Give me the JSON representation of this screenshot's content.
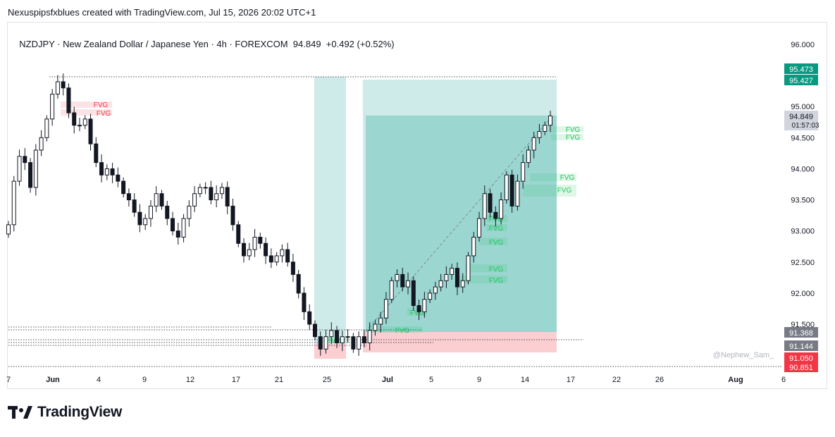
{
  "header": {
    "attribution": "Nexuspipsfxblues created with TradingView.com, Jul 15, 2026 20:02 UTC+1"
  },
  "symbol": {
    "ticker": "NZDJPY",
    "name": "New Zealand Dollar / Japanese Yen",
    "timeframe": "4h",
    "exchange": "FOREXCOM",
    "last": "94.849",
    "change": "+0.492 (+0.52%)"
  },
  "watermark": "@Nephew_Sam_",
  "brand": {
    "name": "TradingView"
  },
  "colors": {
    "fvg_bear": "#f23645",
    "fvg_bull": "#22c55e",
    "target_zone": "#26a69a",
    "stop_zone": "#f7a5ab",
    "price_up_badge": "#089981",
    "price_down_badge": "#f23645",
    "grey_badge": "#787b86"
  },
  "chart_data": {
    "type": "candlestick",
    "y_axis": {
      "ticks": [
        "96.000",
        "95.000",
        "94.500",
        "94.000",
        "93.500",
        "93.000",
        "92.500",
        "92.000",
        "91.500"
      ],
      "range": [
        90.9,
        96.1
      ]
    },
    "x_axis": {
      "ticks": [
        "7",
        "Jun",
        "4",
        "9",
        "12",
        "17",
        "21",
        "25",
        "Jul",
        "5",
        "9",
        "14",
        "17",
        "22",
        "26",
        "Aug",
        "6"
      ]
    },
    "price_labels": [
      {
        "value": "95.473",
        "kind": "target"
      },
      {
        "value": "95.427",
        "kind": "target"
      },
      {
        "value": "94.849",
        "kind": "last",
        "countdown": "01:57:03"
      },
      {
        "value": "91.368",
        "kind": "entry"
      },
      {
        "value": "91.144",
        "kind": "entry"
      },
      {
        "value": "91.050",
        "kind": "stop"
      },
      {
        "value": "90.851",
        "kind": "stop"
      }
    ],
    "fvg_labels": [
      "FVG",
      "FVG",
      "FVG",
      "FVG",
      "FVG",
      "FVG",
      "FVG",
      "FVG",
      "FVG",
      "FVG",
      "FVG",
      "FVG",
      "FVG",
      "FVG"
    ],
    "series": [
      {
        "values": [
          93.1,
          93.8,
          94.2,
          94.1,
          93.7,
          94.3,
          94.5,
          94.8,
          95.2,
          95.4,
          95.3,
          94.9,
          94.7,
          94.7,
          94.8,
          94.4,
          94.1,
          93.9,
          94.0,
          93.9,
          93.8,
          93.6,
          93.5,
          93.3,
          93.1,
          93.2,
          93.4,
          93.6,
          93.4,
          93.2,
          93.0,
          92.9,
          93.2,
          93.4,
          93.6,
          93.7,
          93.7,
          93.5,
          93.6,
          93.7,
          93.4,
          93.1,
          92.8,
          92.6,
          92.7,
          92.9,
          92.8,
          92.6,
          92.5,
          92.6,
          92.7,
          92.5,
          92.3,
          92.0,
          91.7,
          91.5,
          91.3,
          91.1,
          91.3,
          91.4,
          91.2,
          91.3,
          91.3,
          91.1,
          91.3,
          91.2,
          91.4,
          91.5,
          91.6,
          91.9,
          92.2,
          92.3,
          92.1,
          92.2,
          91.8,
          91.7,
          91.9,
          92.0,
          92.1,
          92.2,
          92.3,
          92.4,
          92.1,
          92.2,
          92.6,
          92.9,
          93.2,
          93.6,
          93.3,
          93.2,
          93.5,
          93.9,
          93.4,
          93.8,
          94.1,
          94.3,
          94.5,
          94.6,
          94.7,
          94.85
        ]
      }
    ],
    "annotations": {
      "source": "chart overlays",
      "long_position": {
        "entry_band": [
          91.144,
          91.368
        ],
        "target": [
          95.427,
          95.473
        ],
        "stop": [
          90.851,
          91.05
        ]
      }
    }
  }
}
